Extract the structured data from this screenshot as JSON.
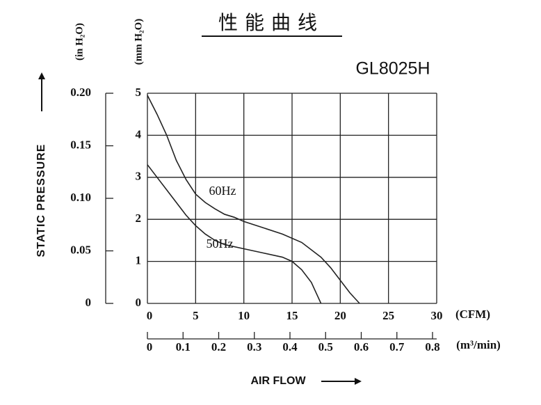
{
  "chart_data": {
    "type": "line",
    "title": "性能曲线",
    "model": "GL8025H",
    "ylabel": "STATIC PRESSURE",
    "xlabel": "AIR FLOW",
    "y_unit": "(mm H₂O)",
    "y2_unit": "(in H₂O)",
    "x_unit": "(CFM)",
    "x2_unit": "(m³/min)",
    "xlim": [
      0,
      30
    ],
    "xticks": [
      0,
      5,
      10,
      15,
      20,
      25,
      30
    ],
    "ylim": [
      0,
      5
    ],
    "yticks": [
      0,
      1,
      2,
      3,
      4,
      5
    ],
    "y2lim": [
      0,
      0.2
    ],
    "y2ticks": [
      0,
      {
        "value": 0.05,
        "label": "0.05"
      },
      {
        "value": 0.1,
        "label": "0.10"
      },
      0.15,
      {
        "value": 0.2,
        "label": "0.20"
      }
    ],
    "x2lim": [
      0,
      0.8
    ],
    "x2ticks": [
      0,
      0.1,
      0.2,
      0.3,
      0.4,
      0.5,
      0.6,
      0.7,
      0.8
    ],
    "grid": true,
    "series": [
      {
        "name": "60Hz",
        "color": "#222222",
        "x": [
          0,
          1,
          2,
          3,
          4,
          5,
          6,
          7,
          8,
          9,
          10,
          12,
          14,
          16,
          18,
          19,
          20,
          21,
          22
        ],
        "values": [
          4.95,
          4.5,
          4.0,
          3.4,
          2.95,
          2.6,
          2.4,
          2.25,
          2.12,
          2.05,
          1.95,
          1.8,
          1.65,
          1.45,
          1.1,
          0.85,
          0.55,
          0.25,
          0
        ]
      },
      {
        "name": "50Hz",
        "color": "#222222",
        "x": [
          0,
          1,
          2,
          3,
          4,
          5,
          6,
          7,
          8,
          10,
          12,
          14,
          15,
          16,
          17,
          17.5,
          18
        ],
        "values": [
          3.3,
          3.0,
          2.7,
          2.4,
          2.1,
          1.85,
          1.65,
          1.5,
          1.4,
          1.3,
          1.2,
          1.1,
          1.0,
          0.8,
          0.5,
          0.25,
          0
        ]
      }
    ]
  }
}
